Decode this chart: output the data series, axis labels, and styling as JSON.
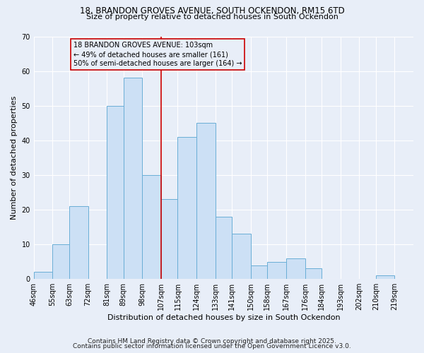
{
  "title1": "18, BRANDON GROVES AVENUE, SOUTH OCKENDON, RM15 6TD",
  "title2": "Size of property relative to detached houses in South Ockendon",
  "xlabel": "Distribution of detached houses by size in South Ockendon",
  "ylabel": "Number of detached properties",
  "bin_labels": [
    "46sqm",
    "55sqm",
    "63sqm",
    "72sqm",
    "81sqm",
    "89sqm",
    "98sqm",
    "107sqm",
    "115sqm",
    "124sqm",
    "133sqm",
    "141sqm",
    "150sqm",
    "158sqm",
    "167sqm",
    "176sqm",
    "184sqm",
    "193sqm",
    "202sqm",
    "210sqm",
    "219sqm"
  ],
  "bar_heights": [
    2,
    10,
    21,
    0,
    50,
    58,
    30,
    23,
    41,
    45,
    18,
    13,
    4,
    5,
    6,
    3,
    0,
    0,
    0,
    1,
    0
  ],
  "bar_color": "#cce0f5",
  "bar_edge_color": "#6aaed6",
  "ylim": [
    0,
    70
  ],
  "yticks": [
    0,
    10,
    20,
    30,
    40,
    50,
    60,
    70
  ],
  "vline_x_label_idx": 6,
  "vline_color": "#cc0000",
  "annotation_title": "18 BRANDON GROVES AVENUE: 103sqm",
  "annotation_line1": "← 49% of detached houses are smaller (161)",
  "annotation_line2": "50% of semi-detached houses are larger (164) →",
  "annotation_box_color": "#cc0000",
  "footer1": "Contains HM Land Registry data © Crown copyright and database right 2025.",
  "footer2": "Contains public sector information licensed under the Open Government Licence v3.0.",
  "bin_edges": [
    46,
    55,
    63,
    72,
    81,
    89,
    98,
    107,
    115,
    124,
    133,
    141,
    150,
    158,
    167,
    176,
    184,
    193,
    202,
    210,
    219,
    228
  ],
  "background_color": "#e8eef8",
  "grid_color": "#ffffff",
  "title_fontsize": 8.5,
  "subtitle_fontsize": 8.0,
  "axis_label_fontsize": 8.0,
  "tick_fontsize": 7.0,
  "annot_fontsize": 7.0,
  "footer_fontsize": 6.5
}
